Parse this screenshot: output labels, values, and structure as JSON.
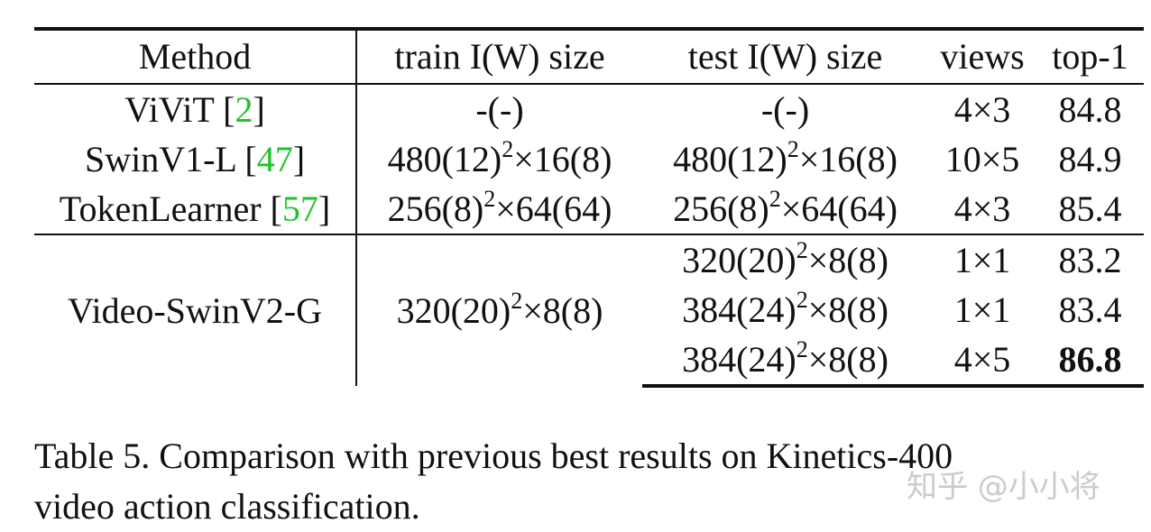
{
  "table": {
    "headers": [
      "Method",
      "train I(W) size",
      "test I(W) size",
      "views",
      "top-1"
    ],
    "rows": [
      {
        "method": "ViViT",
        "cite": "2",
        "train": "-(-)",
        "test": "-(-)",
        "views": "4×3",
        "top1": "84.8"
      },
      {
        "method": "SwinV1-L",
        "cite": "47",
        "train_base": "480(12)",
        "train_exp": "2",
        "train_rest": "×16(8)",
        "test_base": "480(12)",
        "test_exp": "2",
        "test_rest": "×16(8)",
        "views": "10×5",
        "top1": "84.9"
      },
      {
        "method": "TokenLearner",
        "cite": "57",
        "train_base": "256(8)",
        "train_exp": "2",
        "train_rest": "×64(64)",
        "test_base": "256(8)",
        "test_exp": "2",
        "test_rest": "×64(64)",
        "views": "4×3",
        "top1": "85.4"
      }
    ],
    "group": {
      "method": "Video-SwinV2-G",
      "train_base": "320(20)",
      "train_exp": "2",
      "train_rest": "×8(8)",
      "rows": [
        {
          "test_base": "320(20)",
          "test_exp": "2",
          "test_rest": "×8(8)",
          "views": "1×1",
          "top1": "83.2"
        },
        {
          "test_base": "384(24)",
          "test_exp": "2",
          "test_rest": "×8(8)",
          "views": "1×1",
          "top1": "83.4"
        },
        {
          "test_base": "384(24)",
          "test_exp": "2",
          "test_rest": "×8(8)",
          "views": "4×5",
          "top1": "86.8"
        }
      ]
    }
  },
  "caption": {
    "line1": "Table 5.  Comparison with previous best results on Kinetics-400",
    "line2": "video action classification."
  },
  "watermark": "知乎 @小小将"
}
